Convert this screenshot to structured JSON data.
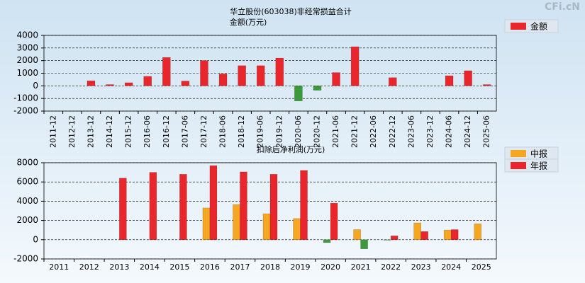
{
  "watermark": "CFi.cN",
  "chart_data": [
    {
      "type": "bar",
      "title": "华立股份(603038)非经常损益合计",
      "y_label": "金额(万元)",
      "categories": [
        "2011-12",
        "2012-12",
        "2013-12",
        "2014-12",
        "2015-12",
        "2016-06",
        "2016-12",
        "2017-06",
        "2017-12",
        "2018-06",
        "2018-12",
        "2019-06",
        "2019-12",
        "2020-06",
        "2020-12",
        "2021-06",
        "2021-12",
        "2022-06",
        "2022-12",
        "2023-06",
        "2023-12",
        "2024-06",
        "2024-12",
        "2025-06"
      ],
      "series": [
        {
          "name": "金额",
          "color": "#e8262b",
          "negative_color": "#3a9a3a",
          "values": [
            null,
            null,
            400,
            100,
            250,
            750,
            2250,
            380,
            2000,
            950,
            1600,
            1600,
            2200,
            -1200,
            -350,
            1050,
            3100,
            null,
            650,
            null,
            null,
            800,
            1200,
            100
          ]
        }
      ],
      "ylim": [
        -2000,
        4000
      ],
      "yticks": [
        -2000,
        -1000,
        0,
        1000,
        2000,
        3000,
        4000
      ],
      "grid": true,
      "legend": "right"
    },
    {
      "type": "bar",
      "title": "扣除后净利润(万元)",
      "categories": [
        "2011",
        "2012",
        "2013",
        "2014",
        "2015",
        "2016",
        "2017",
        "2018",
        "2019",
        "2020",
        "2021",
        "2022",
        "2023",
        "2024",
        "2025"
      ],
      "series": [
        {
          "name": "中报",
          "color": "#f5a623",
          "negative_color": "#3a9a3a",
          "values": [
            null,
            null,
            null,
            null,
            null,
            3300,
            3650,
            2700,
            2200,
            -300,
            1050,
            -50,
            1750,
            1000,
            1650
          ]
        },
        {
          "name": "年报",
          "color": "#e8262b",
          "negative_color": "#3a9a3a",
          "values": [
            null,
            null,
            6400,
            7000,
            6800,
            7700,
            7050,
            6800,
            7200,
            3800,
            -950,
            400,
            850,
            1050,
            null
          ]
        }
      ],
      "ylim": [
        -2000,
        8000
      ],
      "yticks": [
        -2000,
        0,
        2000,
        4000,
        6000,
        8000
      ],
      "grid": true,
      "legend": "right"
    }
  ]
}
